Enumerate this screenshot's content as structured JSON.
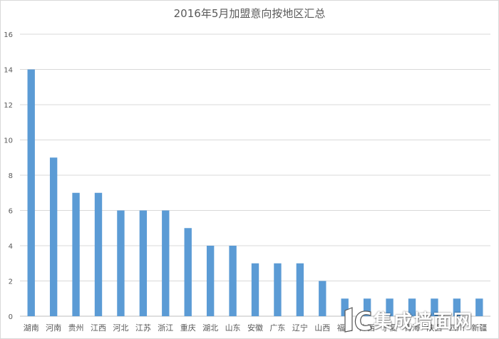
{
  "chart_data": {
    "type": "bar",
    "title": "2016年5月加盟意向按地区汇总",
    "xlabel": "",
    "ylabel": "",
    "ylim": [
      0,
      16
    ],
    "yticks": [
      0,
      2,
      4,
      6,
      8,
      10,
      12,
      14,
      16
    ],
    "grid": true,
    "legend": "none",
    "bar_color": "#5b9bd5",
    "categories": [
      "湖南",
      "河南",
      "贵州",
      "江西",
      "河北",
      "江苏",
      "浙江",
      "重庆",
      "湖北",
      "山东",
      "安徽",
      "广东",
      "辽宁",
      "山西",
      "福建",
      "广西",
      "宁夏",
      "青海",
      "陕西",
      "四川",
      "新疆"
    ],
    "values": [
      14,
      9,
      7,
      7,
      6,
      6,
      6,
      5,
      4,
      4,
      3,
      3,
      3,
      2,
      1,
      1,
      1,
      1,
      1,
      1,
      1
    ]
  },
  "watermark": {
    "text": "集成墙面网",
    "logo": "1C"
  }
}
